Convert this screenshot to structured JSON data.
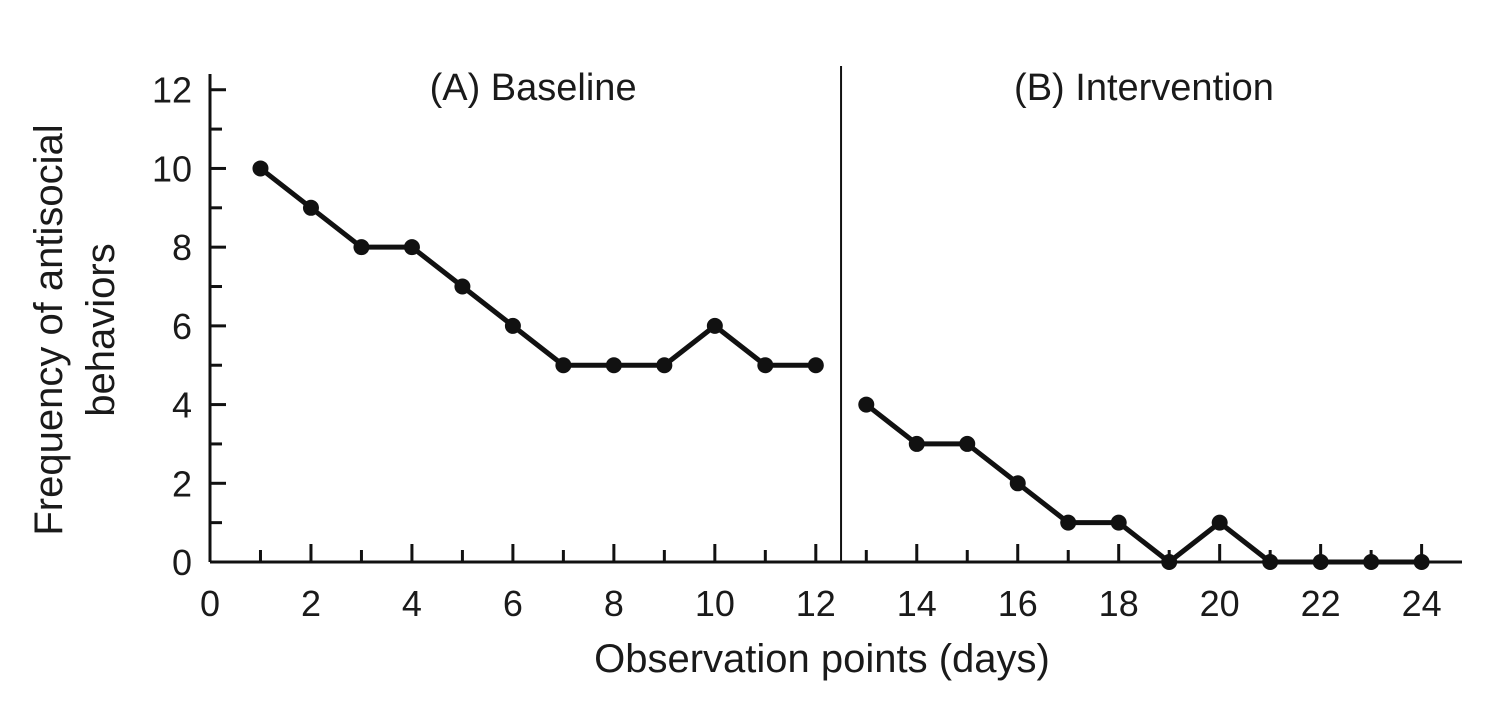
{
  "chart_data": {
    "type": "line",
    "xlabel": "Observation points (days)",
    "ylabel": [
      "Frequency of antisocial",
      "behaviors"
    ],
    "xlim": [
      0,
      24.8
    ],
    "ylim": [
      0,
      12.4
    ],
    "x_ticks": [
      0,
      2,
      4,
      6,
      8,
      10,
      12,
      14,
      16,
      18,
      20,
      22,
      24
    ],
    "y_ticks": [
      0,
      2,
      4,
      6,
      8,
      10,
      12
    ],
    "phase_change_x": 12.5,
    "grid": false,
    "phases": [
      {
        "label": "(A) Baseline",
        "x": [
          1,
          2,
          3,
          4,
          5,
          6,
          7,
          8,
          9,
          10,
          11,
          12
        ],
        "y": [
          10,
          9,
          8,
          8,
          7,
          6,
          5,
          5,
          5,
          6,
          5,
          5
        ]
      },
      {
        "label": "(B) Intervention",
        "x": [
          13,
          14,
          15,
          16,
          17,
          18,
          19,
          20,
          21,
          22,
          23,
          24
        ],
        "y": [
          4,
          3,
          3,
          2,
          1,
          1,
          0,
          1,
          0,
          0,
          0,
          0
        ]
      }
    ],
    "colors": {
      "line": "#111111",
      "marker": "#111111"
    }
  }
}
